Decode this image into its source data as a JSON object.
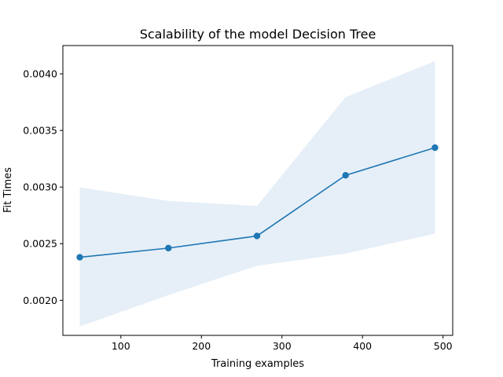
{
  "chart_data": {
    "type": "line",
    "title": "Scalability of the model Decision Tree",
    "xlabel": "Training examples",
    "ylabel": "Fit Times",
    "xlim": [
      28,
      512
    ],
    "ylim": [
      0.00169,
      0.00425
    ],
    "xticks": [
      100,
      200,
      300,
      400,
      500
    ],
    "xtick_labels": [
      "100",
      "200",
      "300",
      "400",
      "500"
    ],
    "yticks": [
      0.002,
      0.0025,
      0.003,
      0.0035,
      0.004
    ],
    "ytick_labels": [
      "0.0020",
      "0.0025",
      "0.0030",
      "0.0035",
      "0.0040"
    ],
    "grid": false,
    "series": [
      {
        "x": [
          49,
          159,
          269,
          379,
          490
        ],
        "y": [
          0.00238,
          0.002461,
          0.002568,
          0.003104,
          0.003348
        ],
        "band_lower": [
          0.001768,
          0.002046,
          0.002305,
          0.002412,
          0.002588
        ],
        "band_upper": [
          0.002997,
          0.002878,
          0.002833,
          0.003795,
          0.004112
        ],
        "color": "#1f77b4",
        "band_color": "#e6eff7",
        "marker": "circle"
      }
    ]
  }
}
